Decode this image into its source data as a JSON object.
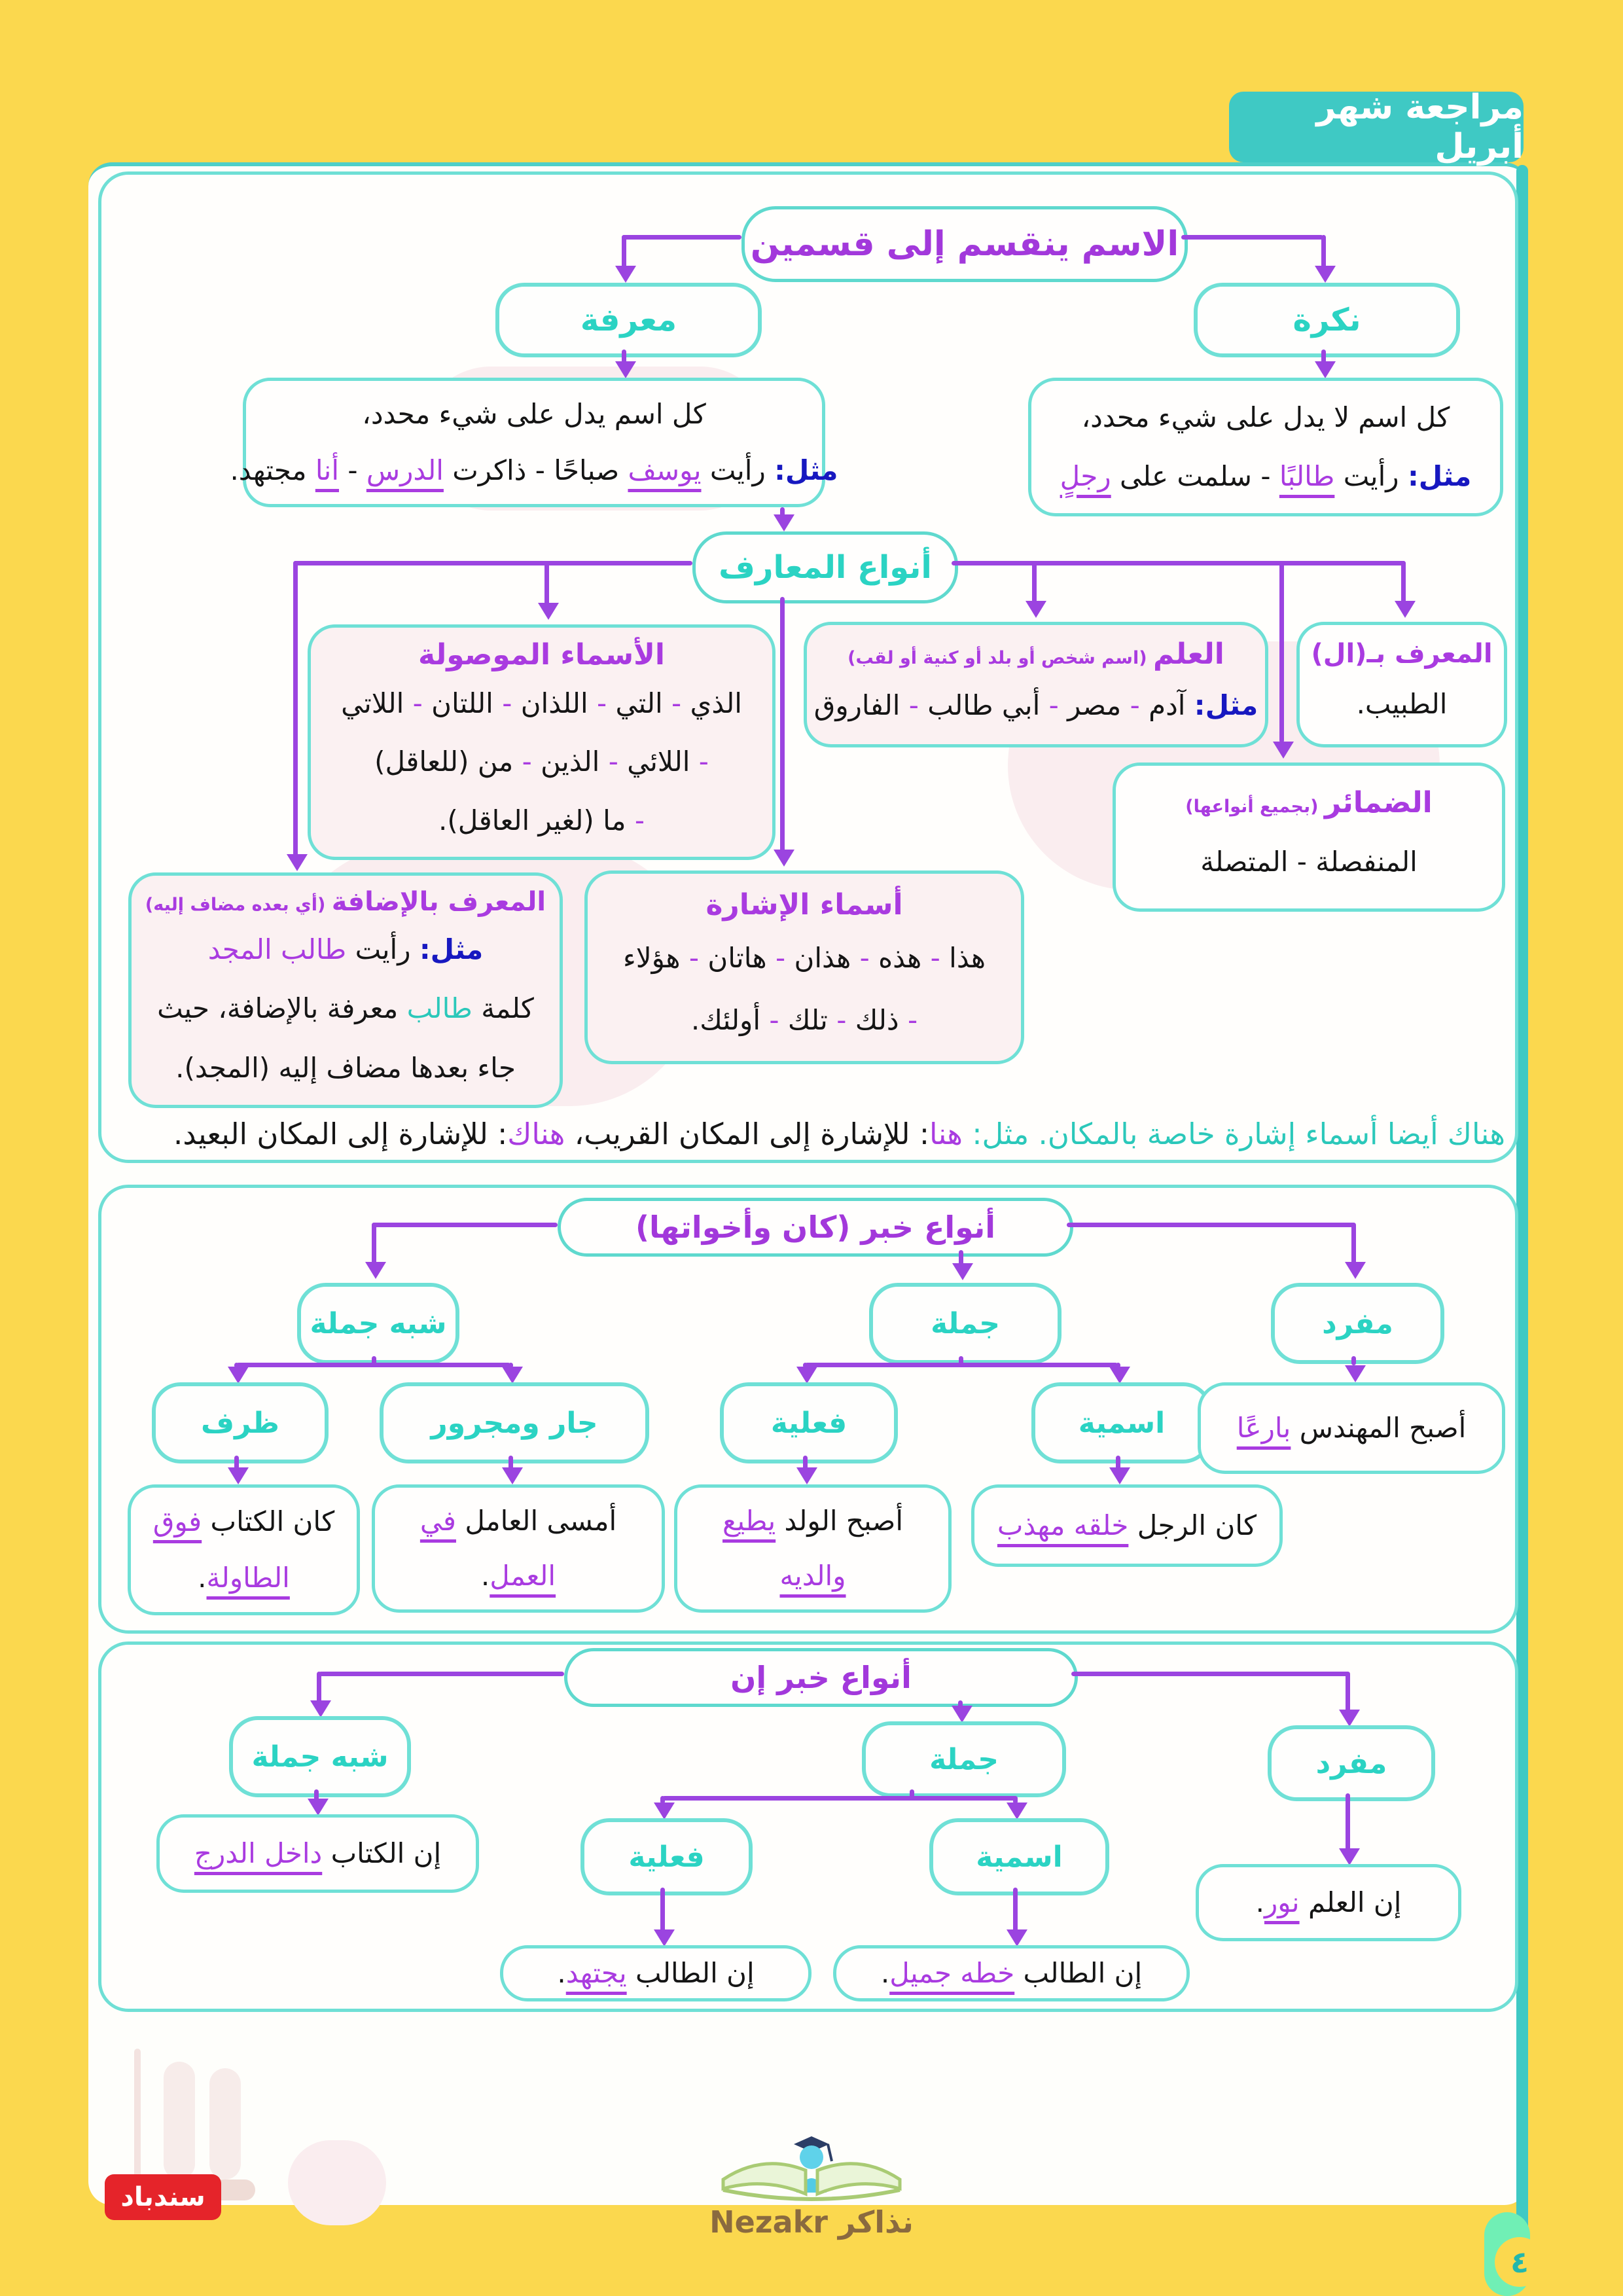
{
  "colors": {
    "yellow": "#FBD84E",
    "teal": "#3FC9C4",
    "purple_heading": "#A238DB",
    "purple_word": "#A93BE0",
    "arrow": "#9B44E0",
    "blue": "#1718C0",
    "red": "#E5242A",
    "brown": "#8A6A3F"
  },
  "badge": {
    "label": "مراجعة شهر أبريل"
  },
  "footer": {
    "sindbad": "سندباد",
    "nezakr": "نذاكر Nezakr",
    "page_number": "٤"
  },
  "noun_diagram": {
    "title": "الاسم ينقسم إلى قسمين",
    "definite": "معرفة",
    "indefinite": "نكرة",
    "definite_def": {
      "line1": [
        {
          "t": "كل اسم يدل على شيء محدد،",
          "c": ""
        }
      ],
      "line2": [
        {
          "t": "مثل:",
          "c": "blue"
        },
        {
          "t": " رأيت ",
          "c": ""
        },
        {
          "t": "يوسف",
          "c": "pu"
        },
        {
          "t": " صباحًا - ذاكرت ",
          "c": ""
        },
        {
          "t": "الدرس",
          "c": "pu"
        },
        {
          "t": " - ",
          "c": ""
        },
        {
          "t": "أنا",
          "c": "pu"
        },
        {
          "t": " مجتهد.",
          "c": ""
        }
      ]
    },
    "indefinite_def": {
      "line1": [
        {
          "t": "كل اسم لا يدل على شيء محدد،",
          "c": ""
        }
      ],
      "line2": [
        {
          "t": "مثل:",
          "c": "blue"
        },
        {
          "t": " رأيت ",
          "c": ""
        },
        {
          "t": "طالبًا",
          "c": "pu"
        },
        {
          "t": " - سلمت على ",
          "c": ""
        },
        {
          "t": "رجلٍ",
          "c": "pu"
        }
      ]
    },
    "types_title": "أنواع المعارف",
    "relative": {
      "title": [
        {
          "t": "الأسماء الموصولة",
          "c": "pt"
        }
      ],
      "line1": [
        {
          "t": "الذي ",
          "c": ""
        },
        {
          "t": "-",
          "c": "p"
        },
        {
          "t": " التي ",
          "c": ""
        },
        {
          "t": "-",
          "c": "p"
        },
        {
          "t": " اللذان ",
          "c": ""
        },
        {
          "t": "-",
          "c": "p"
        },
        {
          "t": " اللتان ",
          "c": ""
        },
        {
          "t": "-",
          "c": "p"
        },
        {
          "t": " اللاتي",
          "c": ""
        }
      ],
      "line2": [
        {
          "t": "-",
          "c": "p"
        },
        {
          "t": " اللائي ",
          "c": ""
        },
        {
          "t": "-",
          "c": "p"
        },
        {
          "t": " الذين ",
          "c": ""
        },
        {
          "t": "-",
          "c": "p"
        },
        {
          "t": " من (للعاقل)",
          "c": ""
        }
      ],
      "line3": [
        {
          "t": "-",
          "c": "p"
        },
        {
          "t": " ما (لغير العاقل).",
          "c": ""
        }
      ]
    },
    "proper": {
      "title": [
        {
          "t": "العلم",
          "c": "pt"
        },
        {
          "t": " (اسم شخص أو بلد أو كنية أو لقب)",
          "c": "pn"
        }
      ],
      "content": [
        {
          "t": "مثل:",
          "c": "blue"
        },
        {
          "t": " آدم ",
          "c": ""
        },
        {
          "t": "-",
          "c": "p"
        },
        {
          "t": " مصر ",
          "c": ""
        },
        {
          "t": "-",
          "c": "p"
        },
        {
          "t": " أبي طالب ",
          "c": ""
        },
        {
          "t": "-",
          "c": "p"
        },
        {
          "t": " الفاروق",
          "c": ""
        }
      ]
    },
    "al": {
      "title": [
        {
          "t": "المعرف بـ(ال)",
          "c": "pt"
        }
      ],
      "content": [
        {
          "t": "الطبيب.",
          "c": ""
        }
      ]
    },
    "pronouns": {
      "title": [
        {
          "t": "الضمائر",
          "c": "pt"
        },
        {
          "t": " (بجميع أنواعها)",
          "c": "pn"
        }
      ],
      "content": [
        {
          "t": "المنفصلة - المتصلة",
          "c": ""
        }
      ]
    },
    "demonstratives": {
      "title": [
        {
          "t": "أسماء الإشارة",
          "c": "pt"
        }
      ],
      "line1": [
        {
          "t": "هذا ",
          "c": ""
        },
        {
          "t": "-",
          "c": "p"
        },
        {
          "t": " هذه ",
          "c": ""
        },
        {
          "t": "-",
          "c": "p"
        },
        {
          "t": " هذان ",
          "c": ""
        },
        {
          "t": "-",
          "c": "p"
        },
        {
          "t": " هاتان ",
          "c": ""
        },
        {
          "t": "-",
          "c": "p"
        },
        {
          "t": " هؤلاء",
          "c": ""
        }
      ],
      "line2": [
        {
          "t": "-",
          "c": "p"
        },
        {
          "t": " ذلك ",
          "c": ""
        },
        {
          "t": "-",
          "c": "p"
        },
        {
          "t": " تلك ",
          "c": ""
        },
        {
          "t": "-",
          "c": "p"
        },
        {
          "t": " أولئك.",
          "c": ""
        }
      ]
    },
    "idafa": {
      "title": [
        {
          "t": "المعرف بالإضافة",
          "c": "pt"
        },
        {
          "t": " (أي بعده مضاف إليه)",
          "c": "pn"
        }
      ],
      "line2": [
        {
          "t": "مثل:",
          "c": "blue"
        },
        {
          "t": " رأيت ",
          "c": ""
        },
        {
          "t": "طالب المجد",
          "c": "p"
        }
      ],
      "line3": [
        {
          "t": "كلمة ",
          "c": ""
        },
        {
          "t": "طالب",
          "c": "teal"
        },
        {
          "t": " معرفة بالإضافة، حيث",
          "c": ""
        }
      ],
      "line4": [
        {
          "t": "جاء بعدها مضاف إليه (المجد).",
          "c": ""
        }
      ]
    },
    "note": [
      {
        "t": "هناك أيضا أسماء إشارة خاصة بالمكان. مثل: ",
        "c": "teal"
      },
      {
        "t": "هنا",
        "c": "p"
      },
      {
        "t": ": للإشارة إلى المكان القريب، ",
        "c": ""
      },
      {
        "t": "هناك",
        "c": "p"
      },
      {
        "t": ": للإشارة إلى المكان البعيد.",
        "c": ""
      }
    ]
  },
  "kana_diagram": {
    "title": "أنواع خبر (كان وأخواتها)",
    "nodes": {
      "shibh": "شبه جملة",
      "jumla": "جملة",
      "mufrad": "مفرد",
      "zarf": "ظرف",
      "jar": "جار ومجرور",
      "filiya": "فعلية",
      "ismiya": "اسمية"
    },
    "mufrad_ex": [
      {
        "t": "أصبح المهندس ",
        "c": ""
      },
      {
        "t": "بارعًا",
        "c": "pu"
      }
    ],
    "zarf_ex_l1": [
      {
        "t": "كان الكتاب ",
        "c": ""
      },
      {
        "t": "فوق",
        "c": "pu"
      }
    ],
    "zarf_ex_l2": [
      {
        "t": "الطاولة",
        "c": "pu"
      },
      {
        "t": ".",
        "c": ""
      }
    ],
    "jar_ex_l1": [
      {
        "t": "أمسى العامل ",
        "c": ""
      },
      {
        "t": "في",
        "c": "pu"
      }
    ],
    "jar_ex_l2": [
      {
        "t": "العمل",
        "c": "pu"
      },
      {
        "t": ".",
        "c": ""
      }
    ],
    "filiya_ex_l1": [
      {
        "t": "أصبح الولد ",
        "c": ""
      },
      {
        "t": "يطيع",
        "c": "pu"
      }
    ],
    "filiya_ex_l2": [
      {
        "t": "والديه",
        "c": "pu"
      }
    ],
    "ismiya_ex": [
      {
        "t": "كان الرجل ",
        "c": ""
      },
      {
        "t": "خلقه مهذب",
        "c": "pu"
      }
    ]
  },
  "inna_diagram": {
    "title": "أنواع خبر إن",
    "nodes": {
      "shibh": "شبه جملة",
      "jumla": "جملة",
      "mufrad": "مفرد",
      "filiya": "فعلية",
      "ismiya": "اسمية"
    },
    "shibh_ex": [
      {
        "t": "إن الكتاب ",
        "c": ""
      },
      {
        "t": "داخل الدرج",
        "c": "pu"
      }
    ],
    "mufrad_ex": [
      {
        "t": "إن العلم ",
        "c": ""
      },
      {
        "t": "نور",
        "c": "pu"
      },
      {
        "t": ".",
        "c": ""
      }
    ],
    "filiya_ex": [
      {
        "t": "إن الطالب ",
        "c": ""
      },
      {
        "t": "يجتهد",
        "c": "pu"
      },
      {
        "t": ".",
        "c": ""
      }
    ],
    "ismiya_ex": [
      {
        "t": "إن الطالب ",
        "c": ""
      },
      {
        "t": "خطه جميل",
        "c": "pu"
      },
      {
        "t": ".",
        "c": ""
      }
    ]
  }
}
